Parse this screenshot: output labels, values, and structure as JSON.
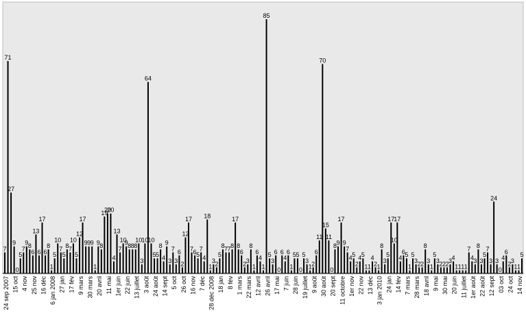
{
  "chart_data": {
    "type": "bar",
    "title": "",
    "xlabel": "",
    "ylabel": "",
    "ylim": [
      0,
      90
    ],
    "grid": false,
    "legend": "none",
    "bar_color": "#000000",
    "plot_background": "#e9e9e9",
    "values": [
      7,
      71,
      27,
      9,
      0,
      5,
      7,
      9,
      8,
      6,
      13,
      6,
      17,
      6,
      8,
      1,
      5,
      10,
      7,
      5,
      8,
      7,
      10,
      5,
      12,
      17,
      9,
      9,
      9,
      1,
      9,
      8,
      19,
      20,
      20,
      4,
      13,
      7,
      10,
      9,
      8,
      8,
      8,
      10,
      3,
      10,
      64,
      10,
      5,
      5,
      8,
      4,
      9,
      3,
      7,
      3,
      6,
      2,
      12,
      17,
      7,
      6,
      5,
      7,
      4,
      18,
      1,
      3,
      2,
      5,
      8,
      7,
      7,
      8,
      17,
      8,
      6,
      2,
      3,
      8,
      1,
      6,
      4,
      1,
      85,
      5,
      3,
      6,
      0,
      6,
      4,
      6,
      1,
      5,
      5,
      0,
      5,
      3,
      1,
      2,
      6,
      11,
      70,
      15,
      11,
      0,
      8,
      9,
      17,
      9,
      7,
      4,
      5,
      2,
      4,
      5,
      1,
      1,
      4,
      2,
      1,
      8,
      3,
      5,
      17,
      10,
      17,
      4,
      6,
      5,
      1,
      5,
      3,
      2,
      2,
      8,
      3,
      1,
      5,
      3,
      2,
      2,
      2,
      3,
      4,
      1,
      1,
      1,
      1,
      7,
      4,
      3,
      8,
      3,
      5,
      7,
      3,
      24,
      3,
      0,
      4,
      6,
      2,
      3,
      1,
      1,
      5
    ],
    "x_tick_labels": [
      "24 sep 2007",
      "15 oct",
      "4 nov",
      "25 nov",
      "16 déc",
      "6 jan 2008",
      "27 jan",
      "17 fév",
      "9 mars",
      "30 mars",
      "20 avril",
      "11 mai",
      "1er juin",
      "22 juin",
      "13 juillet",
      "3 août",
      "24 août",
      "14 sept",
      "5 oct",
      "26 oct",
      "16 nov",
      "7 déc",
      "28 déc 2008",
      "18 jan",
      "8 fév",
      "1 mars",
      "22 mars",
      "12 avril",
      "26 avril",
      "17 mai",
      "7 juin",
      "28 juin",
      "19 juillet",
      "9 août",
      "30 août",
      "20 sept",
      "11 octobre",
      "1er nov",
      "22 nov",
      "13 déc",
      "3 jan 2010",
      "24 jan",
      "14 fév",
      "7 mars",
      "28 mars",
      "18 avril",
      "9 mai",
      "30 mai",
      "20 juin",
      "11 juillet",
      "1er août",
      "22 août",
      "12 sept",
      "03 oct",
      "24 oct",
      "14 nov"
    ]
  }
}
